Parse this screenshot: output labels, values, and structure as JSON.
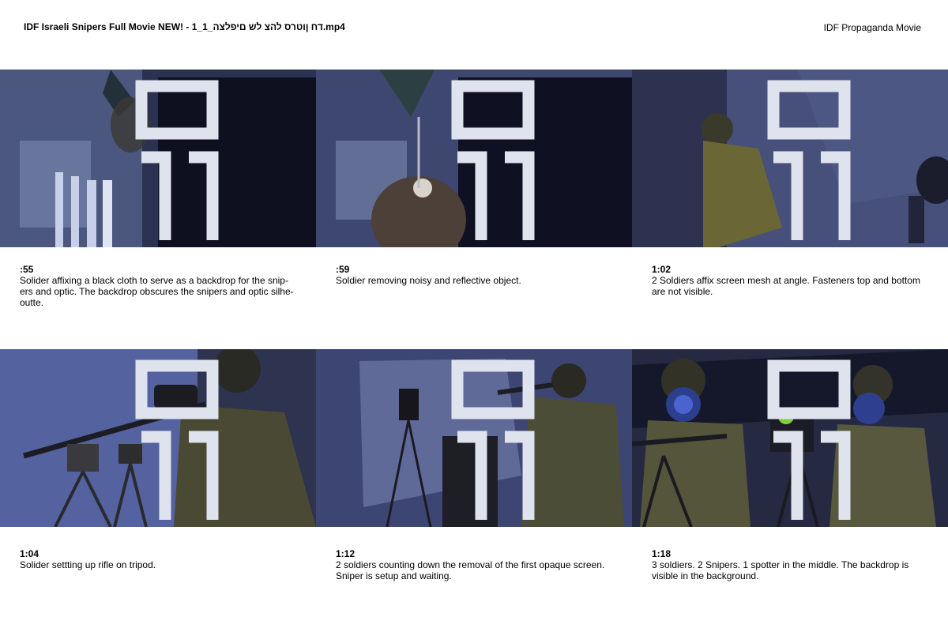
{
  "header": {
    "title": "IDF Israeli Snipers Full Movie NEW! - דח ןוטרס להצ לש םיפלצה_1_1.mp4",
    "subtitle": "IDF Propaganda Movie"
  },
  "frames": [
    {
      "time": ":55",
      "description": "Solider affixing a black cloth to serve as a backdrop for the snip-ers and optic. The backdrop obscures the snipers and optic silhe-outte."
    },
    {
      "time": ":59",
      "description": "Soldier removing noisy and reflective object."
    },
    {
      "time": "1:02",
      "description": "2 Soldiers affix screen mesh at angle. Fasteners top and bottom are not visible."
    },
    {
      "time": "1:04",
      "description": "Solider settting up rifle on tripod."
    },
    {
      "time": "1:12",
      "description": "2 soldiers counting down the removal of the first opaque screen. Sniper is setup and waiting."
    },
    {
      "time": "1:18",
      "description": "3 soldiers. 2 Snipers. 1 spotter in the middle. The backdrop is visible in the background."
    }
  ],
  "colors": {
    "scene_dark": "#161827",
    "wall_blue": "#5a6a9a",
    "uniform_olive": "#5b5a3e"
  },
  "icons": {
    "channel_logo": "channel-logo-icon"
  }
}
